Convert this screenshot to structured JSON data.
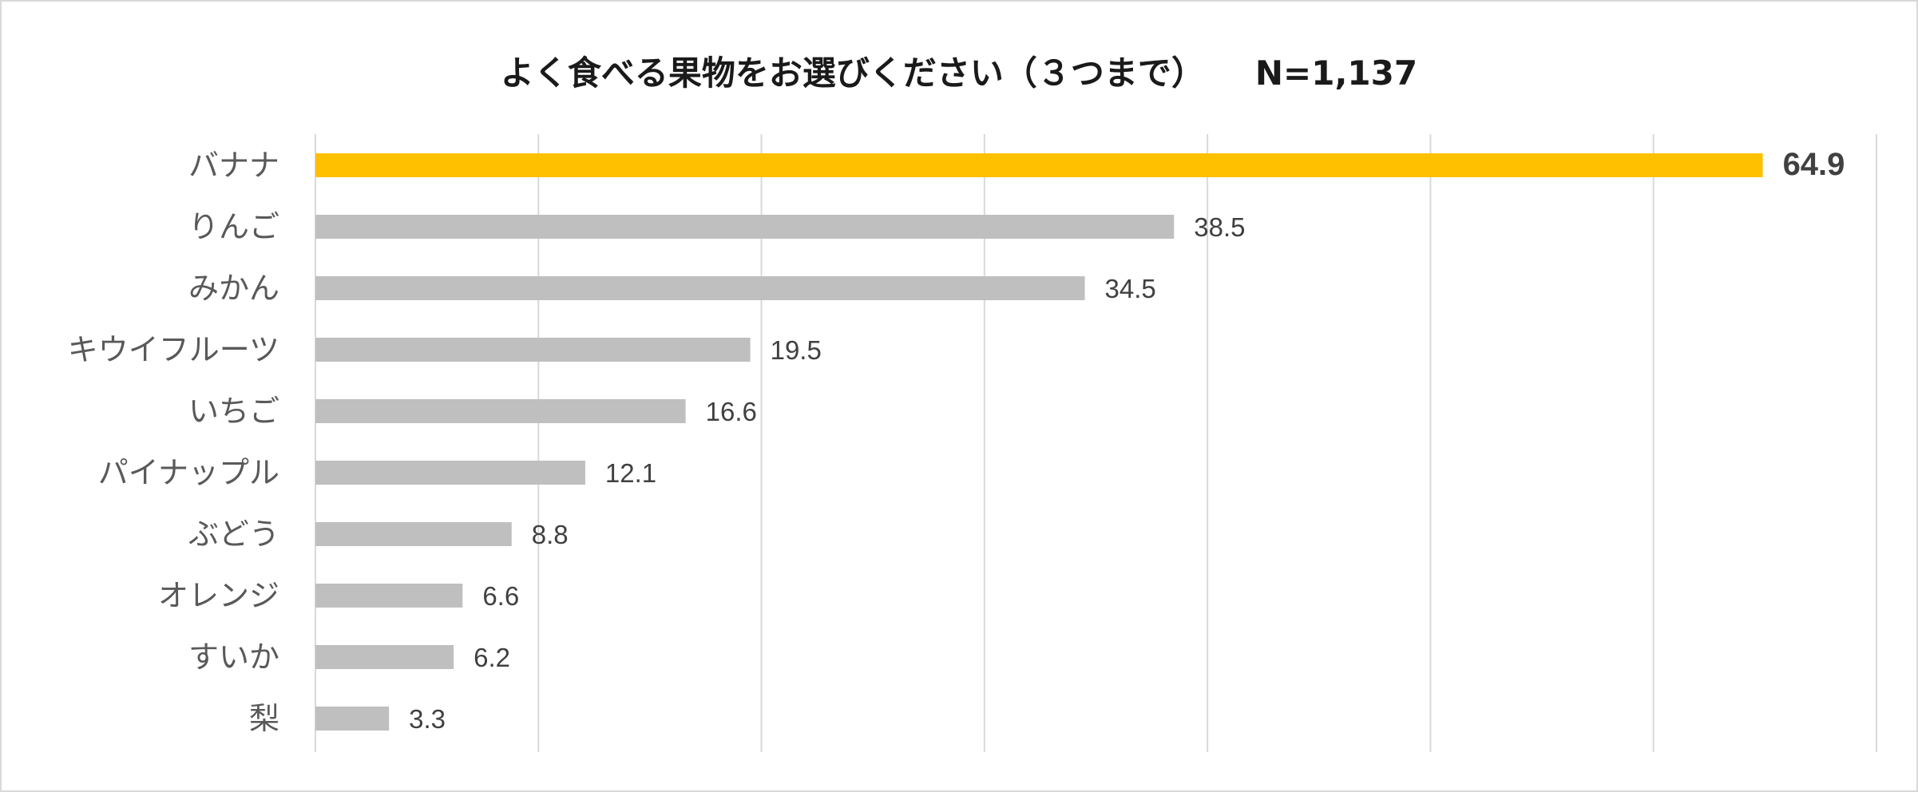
{
  "chart_data": {
    "type": "bar",
    "orientation": "horizontal",
    "title": "よく食べる果物をお選びください（３つまで）　　N=1,137",
    "categories": [
      "バナナ",
      "りんご",
      "みかん",
      "キウイフルーツ",
      "いちご",
      "パイナップル",
      "ぶどう",
      "オレンジ",
      "すいか",
      "梨"
    ],
    "values": [
      64.9,
      38.5,
      34.5,
      19.5,
      16.6,
      12.1,
      8.8,
      6.6,
      6.2,
      3.3
    ],
    "value_labels": [
      "64.9",
      "38.5",
      "34.5",
      "19.5",
      "16.6",
      "12.1",
      "8.8",
      "6.6",
      "6.2",
      "3.3"
    ],
    "xlim": [
      0,
      70
    ],
    "grid": true,
    "legend": "none",
    "colors": {
      "highlight": "#ffc000",
      "default": "#bfbfbf",
      "grid": "#d9d9d9",
      "label": "#595959",
      "value": "#404040"
    },
    "highlight_index": 0
  }
}
